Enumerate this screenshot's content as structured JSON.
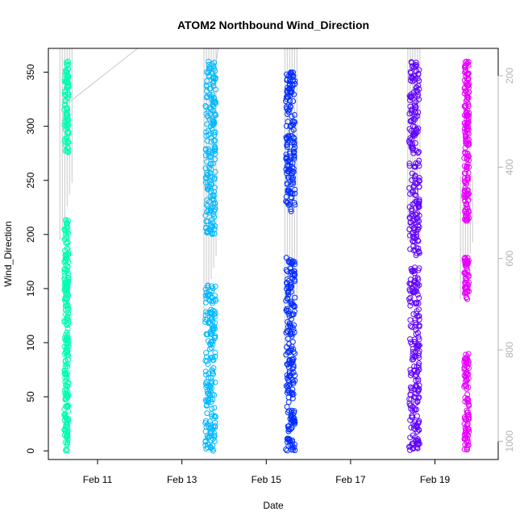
{
  "chart_data": {
    "type": "scatter",
    "title": "ATOM2 Northbound Wind_Direction",
    "xlabel": "Date",
    "ylabel": "Wind_Direction",
    "xlim": [
      "2018-02-09T20:00",
      "2018-02-20T12:00"
    ],
    "ylim": [
      -8,
      372
    ],
    "x_ticks": [
      {
        "label": "Feb 11",
        "value": "2018-02-11"
      },
      {
        "label": "Feb 13",
        "value": "2018-02-13"
      },
      {
        "label": "Feb 15",
        "value": "2018-02-15"
      },
      {
        "label": "Feb 17",
        "value": "2018-02-17"
      },
      {
        "label": "Feb 19",
        "value": "2018-02-19"
      }
    ],
    "y_ticks": [
      0,
      50,
      100,
      150,
      200,
      250,
      300,
      350
    ],
    "y2_ticks": [
      200,
      400,
      600,
      800,
      1000
    ],
    "y2_reversed": true,
    "y2_range": [
      140,
      1040
    ],
    "grid": false,
    "legend": "none",
    "marker": "open-circle",
    "series": [
      {
        "color": "#00ffb2",
        "x_range": [
          "2018-02-10T04:30",
          "2018-02-10T08:00"
        ],
        "y_clusters": [
          [
            0,
            60
          ],
          [
            60,
            150
          ],
          [
            150,
            215
          ],
          [
            275,
            360
          ]
        ],
        "pressure_line": {
          "x": "2018-02-10T06:00",
          "y2_range": [
            140,
            560
          ]
        }
      },
      {
        "color": "#00b8ff",
        "x_range": [
          "2018-02-13T12:00",
          "2018-02-13T20:30"
        ],
        "y_clusters": [
          [
            0,
            80
          ],
          [
            80,
            155
          ],
          [
            200,
            300
          ],
          [
            300,
            360
          ]
        ],
        "pressure_line": {
          "x": "2018-02-13T16:00",
          "y2_range": [
            140,
            720
          ]
        }
      },
      {
        "color": "#002bff",
        "x_range": [
          "2018-02-15T10:00",
          "2018-02-15T17:30"
        ],
        "y_clusters": [
          [
            0,
            80
          ],
          [
            80,
            180
          ],
          [
            220,
            300
          ],
          [
            300,
            350
          ]
        ],
        "pressure_line": {
          "x": "2018-02-15T14:00",
          "y2_range": [
            140,
            820
          ]
        }
      },
      {
        "color": "#5f00ff",
        "x_range": [
          "2018-02-18T08:00",
          "2018-02-18T16:30"
        ],
        "y_clusters": [
          [
            0,
            60
          ],
          [
            60,
            170
          ],
          [
            180,
            230
          ],
          [
            230,
            360
          ]
        ],
        "pressure_line": {
          "x": "2018-02-18T12:00",
          "y2_range": [
            140,
            560
          ]
        }
      },
      {
        "color": "#e600ff",
        "x_range": [
          "2018-02-19T16:00",
          "2018-02-19T20:00"
        ],
        "y_clusters": [
          [
            0,
            90
          ],
          [
            140,
            180
          ],
          [
            210,
            300
          ],
          [
            300,
            360
          ]
        ],
        "pressure_line": {
          "x": "2018-02-19T18:00",
          "y2_range": [
            420,
            690
          ]
        }
      }
    ]
  }
}
